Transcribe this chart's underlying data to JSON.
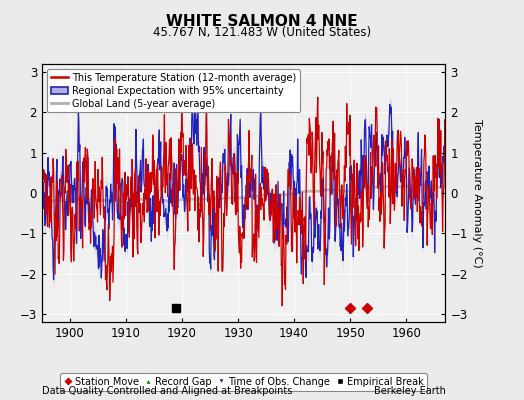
{
  "title": "WHITE SALMON 4 NNE",
  "subtitle": "45.767 N, 121.483 W (United States)",
  "ylabel": "Temperature Anomaly (°C)",
  "xlabel_left": "Data Quality Controlled and Aligned at Breakpoints",
  "xlabel_right": "Berkeley Earth",
  "ylim": [
    -3.2,
    3.2
  ],
  "xlim": [
    1895,
    1967
  ],
  "yticks": [
    -3,
    -2,
    -1,
    0,
    1,
    2,
    3
  ],
  "xticks": [
    1900,
    1910,
    1920,
    1930,
    1940,
    1950,
    1960
  ],
  "year_start": 1895,
  "year_end": 1967,
  "bg_color": "#ebebeb",
  "plot_bg_color": "#f0f0f0",
  "red_color": "#cc0000",
  "blue_color": "#2222bb",
  "blue_fill_color": "#b0b0dd",
  "gray_color": "#b0b0b0",
  "station_move_years": [
    1950,
    1953
  ],
  "empirical_break_year": 1919,
  "legend_entries": [
    "This Temperature Station (12-month average)",
    "Regional Expectation with 95% uncertainty",
    "Global Land (5-year average)"
  ]
}
